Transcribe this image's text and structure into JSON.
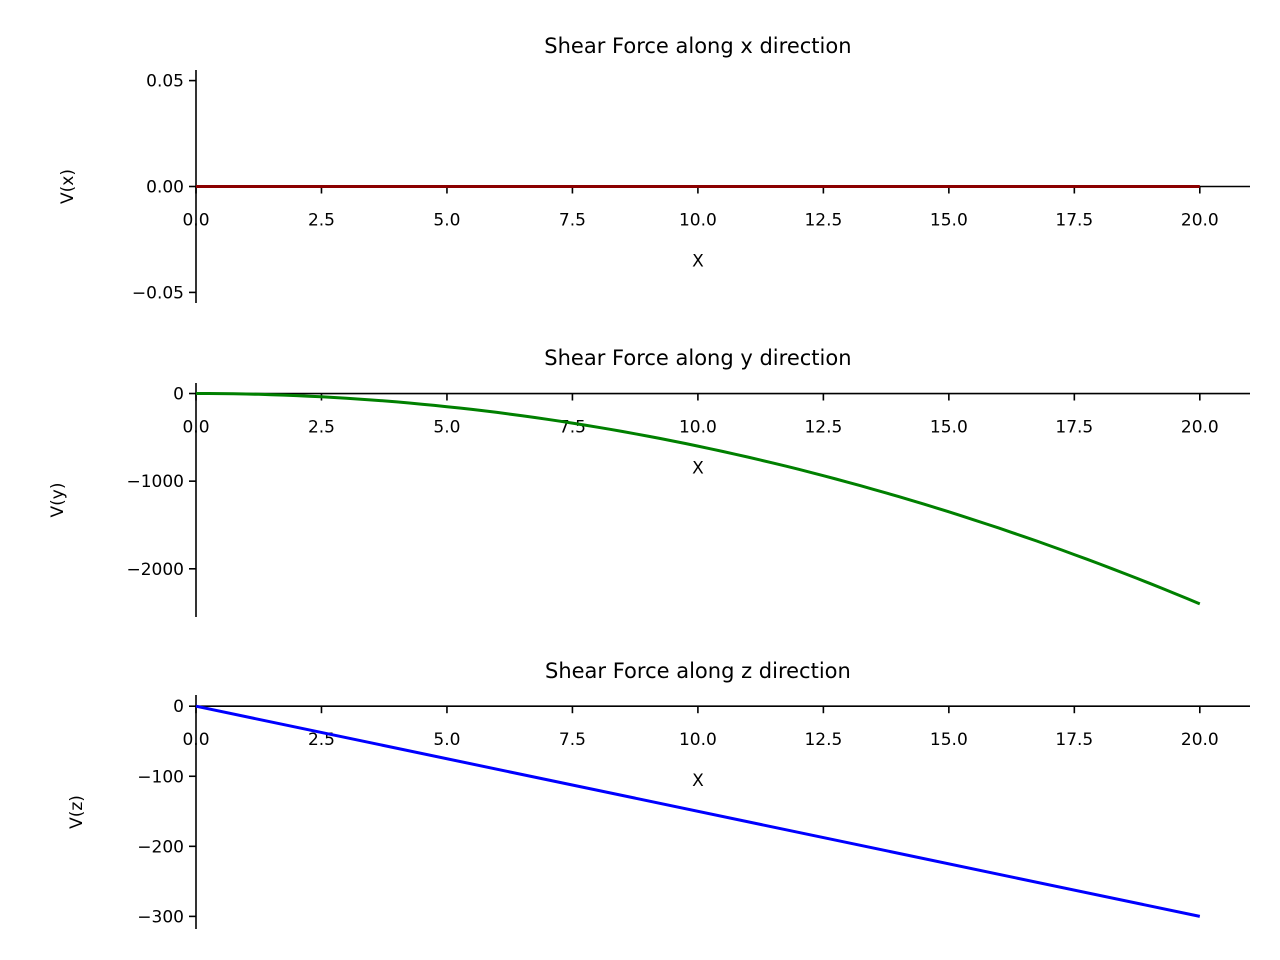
{
  "chart_data": [
    {
      "type": "line",
      "title": "Shear Force along x direction",
      "xlabel": "X",
      "ylabel": "V(x)",
      "xlim": [
        0,
        21
      ],
      "ylim": [
        -0.055,
        0.055
      ],
      "xticks": [
        0,
        2.5,
        5,
        7.5,
        10,
        12.5,
        15,
        17.5,
        20
      ],
      "xtick_labels": [
        "0.0",
        "2.5",
        "5.0",
        "7.5",
        "10.0",
        "12.5",
        "15.0",
        "17.5",
        "20.0"
      ],
      "yticks": [
        0.05,
        0,
        -0.05
      ],
      "ytick_labels": [
        "0.05",
        "0.00",
        "−0.05"
      ],
      "grid": false,
      "series": [
        {
          "color": "#8b0000",
          "x": [
            0,
            20
          ],
          "y": [
            0,
            0
          ]
        }
      ]
    },
    {
      "type": "line",
      "title": "Shear Force along y direction",
      "xlabel": "X",
      "ylabel": "V(y)",
      "xlim": [
        0,
        21
      ],
      "ylim": [
        -2550,
        120
      ],
      "xticks": [
        0,
        2.5,
        5,
        7.5,
        10,
        12.5,
        15,
        17.5,
        20
      ],
      "xtick_labels": [
        "0.0",
        "2.5",
        "5.0",
        "7.5",
        "10.0",
        "12.5",
        "15.0",
        "17.5",
        "20.0"
      ],
      "yticks": [
        0,
        -1000,
        -2000
      ],
      "ytick_labels": [
        "0",
        "−1000",
        "−2000"
      ],
      "grid": false,
      "series": [
        {
          "color": "#008000",
          "x": [
            0,
            2.5,
            5,
            7.5,
            10,
            12.5,
            15,
            17.5,
            20
          ],
          "y": [
            0,
            -37.5,
            -150,
            -337.5,
            -600,
            -937.5,
            -1350,
            -1837.5,
            -2400
          ]
        }
      ]
    },
    {
      "type": "line",
      "title": "Shear Force along z direction",
      "xlabel": "X",
      "ylabel": "V(z)",
      "xlim": [
        0,
        21
      ],
      "ylim": [
        -318,
        16
      ],
      "xticks": [
        0,
        2.5,
        5,
        7.5,
        10,
        12.5,
        15,
        17.5,
        20
      ],
      "xtick_labels": [
        "0.0",
        "2.5",
        "5.0",
        "7.5",
        "10.0",
        "12.5",
        "15.0",
        "17.5",
        "20.0"
      ],
      "yticks": [
        0,
        -100,
        -200,
        -300
      ],
      "ytick_labels": [
        "0",
        "−100",
        "−200",
        "−300"
      ],
      "grid": false,
      "series": [
        {
          "color": "#0000ff",
          "x": [
            0,
            20
          ],
          "y": [
            0,
            -300
          ]
        }
      ]
    }
  ]
}
